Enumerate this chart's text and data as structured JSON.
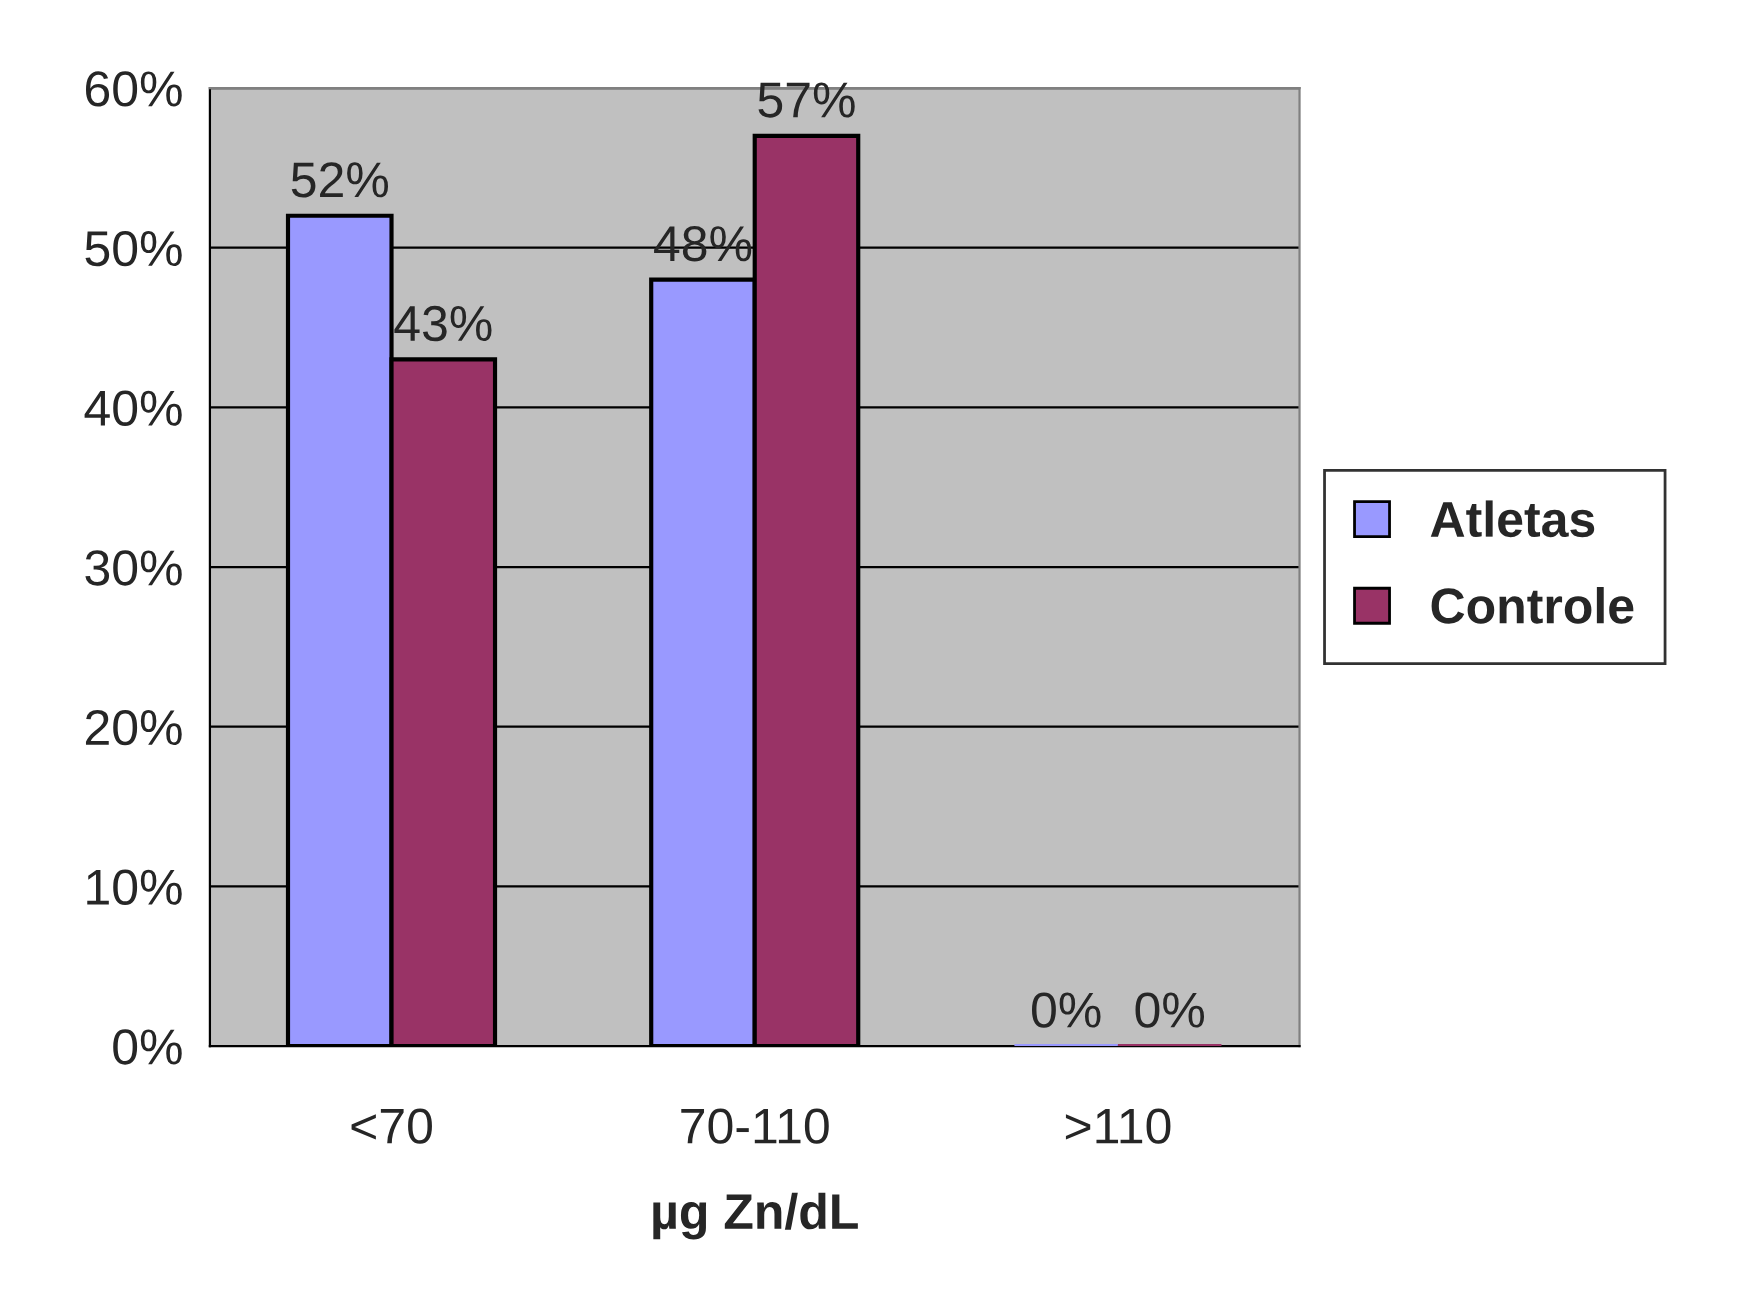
{
  "chart_data": {
    "type": "bar",
    "xlabel": "µg Zn/dL",
    "categories": [
      "<70",
      "70-110",
      ">110"
    ],
    "series": [
      {
        "name": "Atletas",
        "color": "#9999ff",
        "values": [
          52,
          48,
          0
        ],
        "value_labels": [
          "52%",
          "48%",
          "0%"
        ]
      },
      {
        "name": "Controle",
        "color": "#993366",
        "values": [
          43,
          57,
          0
        ],
        "value_labels": [
          "43%",
          "57%",
          "0%"
        ]
      }
    ],
    "ylim": [
      0,
      60
    ],
    "yticks": [
      {
        "value": 0,
        "label": "0%"
      },
      {
        "value": 10,
        "label": "10%"
      },
      {
        "value": 20,
        "label": "20%"
      },
      {
        "value": 30,
        "label": "30%"
      },
      {
        "value": 40,
        "label": "40%"
      },
      {
        "value": 50,
        "label": "50%"
      },
      {
        "value": 60,
        "label": "60%"
      }
    ],
    "grid": "y",
    "legend": "right"
  }
}
